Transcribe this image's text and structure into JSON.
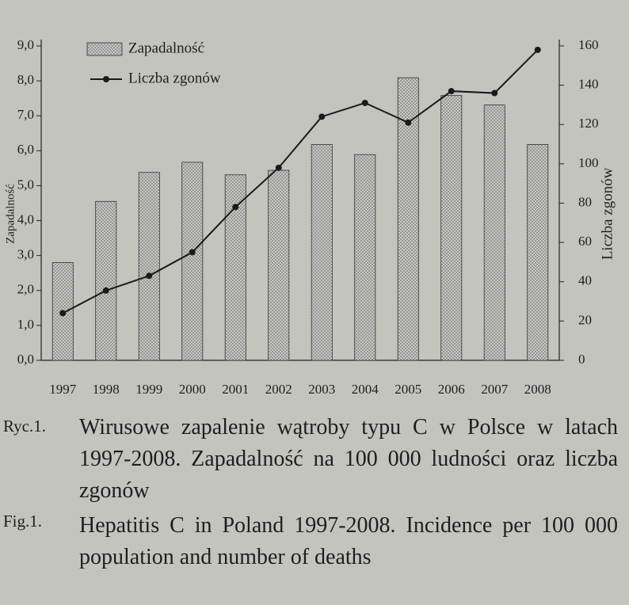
{
  "chart_data": {
    "type": "bar_line",
    "categories": [
      "1997",
      "1998",
      "1999",
      "2000",
      "2001",
      "2002",
      "2003",
      "2004",
      "2005",
      "2006",
      "2007",
      "2008"
    ],
    "series": [
      {
        "name": "Zapadalność",
        "type": "bar",
        "color": "#8e8e8e",
        "axis": "y",
        "values": [
          2.8,
          4.55,
          5.38,
          5.67,
          5.31,
          5.44,
          6.18,
          5.89,
          8.09,
          7.58,
          7.31,
          6.18
        ]
      },
      {
        "name": "Liczba zgonów",
        "type": "line",
        "color": "#1a1a1a",
        "axis": "y2",
        "values": [
          24,
          35.5,
          43,
          55,
          78,
          98,
          124,
          131,
          121,
          137,
          136,
          158
        ]
      }
    ],
    "ylabel": "Zapadalność",
    "y2label": "Liczba zgonów",
    "ylim": [
      0,
      9
    ],
    "yticks": [
      {
        "value": 0,
        "label": "0,0"
      },
      {
        "value": 1,
        "label": "1,0"
      },
      {
        "value": 2,
        "label": "2,0"
      },
      {
        "value": 3,
        "label": "3,0"
      },
      {
        "value": 4,
        "label": "4,0"
      },
      {
        "value": 5,
        "label": "5,0"
      },
      {
        "value": 6,
        "label": "6,0"
      },
      {
        "value": 7,
        "label": "7,0"
      },
      {
        "value": 8,
        "label": "8,0"
      },
      {
        "value": 9,
        "label": "9,0"
      }
    ],
    "y2lim": [
      0,
      160
    ],
    "y2ticks": [
      0,
      20,
      40,
      60,
      80,
      100,
      120,
      140,
      160
    ],
    "legend": "upper left",
    "grid": false,
    "captions": [
      {
        "label": "Ryc.1.",
        "text": "Wirusowe zapalenie wątroby typu C w Polsce w latach 1997-2008. Zapadalność na 100 000 ludności oraz liczba zgonów"
      },
      {
        "label": "Fig.1.",
        "text": "Hepatitis C in Poland 1997-2008. Incidence per 100 000 population and number of deaths"
      }
    ]
  }
}
